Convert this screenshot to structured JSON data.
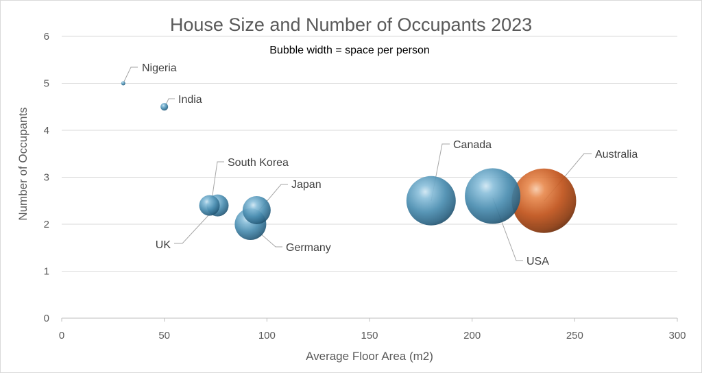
{
  "chart_data": {
    "type": "bubble",
    "title": "House Size and Number of Occupants 2023",
    "subtitle": "Bubble width = space per person",
    "xlabel": "Average Floor Area (m2)",
    "ylabel": "Number of Occupants",
    "xlim": [
      0,
      300
    ],
    "ylim": [
      0,
      6
    ],
    "x_ticks": [
      0,
      50,
      100,
      150,
      200,
      250,
      300
    ],
    "y_ticks": [
      0,
      1,
      2,
      3,
      4,
      5,
      6
    ],
    "grid": "horizontal",
    "colors": {
      "default": "#4a8db0",
      "highlight": "#c0521a"
    },
    "points": [
      {
        "label": "Nigeria",
        "x": 30,
        "y": 5,
        "size": 6,
        "highlight": false
      },
      {
        "label": "India",
        "x": 50,
        "y": 4.5,
        "size": 11,
        "highlight": false
      },
      {
        "label": "South Korea",
        "x": 72,
        "y": 2.4,
        "size": 30,
        "highlight": false
      },
      {
        "label": "UK",
        "x": 76,
        "y": 2.4,
        "size": 32,
        "highlight": false
      },
      {
        "label": "Japan",
        "x": 95,
        "y": 2.3,
        "size": 41,
        "highlight": false
      },
      {
        "label": "Germany",
        "x": 92,
        "y": 2.0,
        "size": 46,
        "highlight": false
      },
      {
        "label": "Canada",
        "x": 180,
        "y": 2.5,
        "size": 72,
        "highlight": false
      },
      {
        "label": "USA",
        "x": 210,
        "y": 2.6,
        "size": 81,
        "highlight": false
      },
      {
        "label": "Australia",
        "x": 235,
        "y": 2.5,
        "size": 94,
        "highlight": true
      }
    ]
  }
}
